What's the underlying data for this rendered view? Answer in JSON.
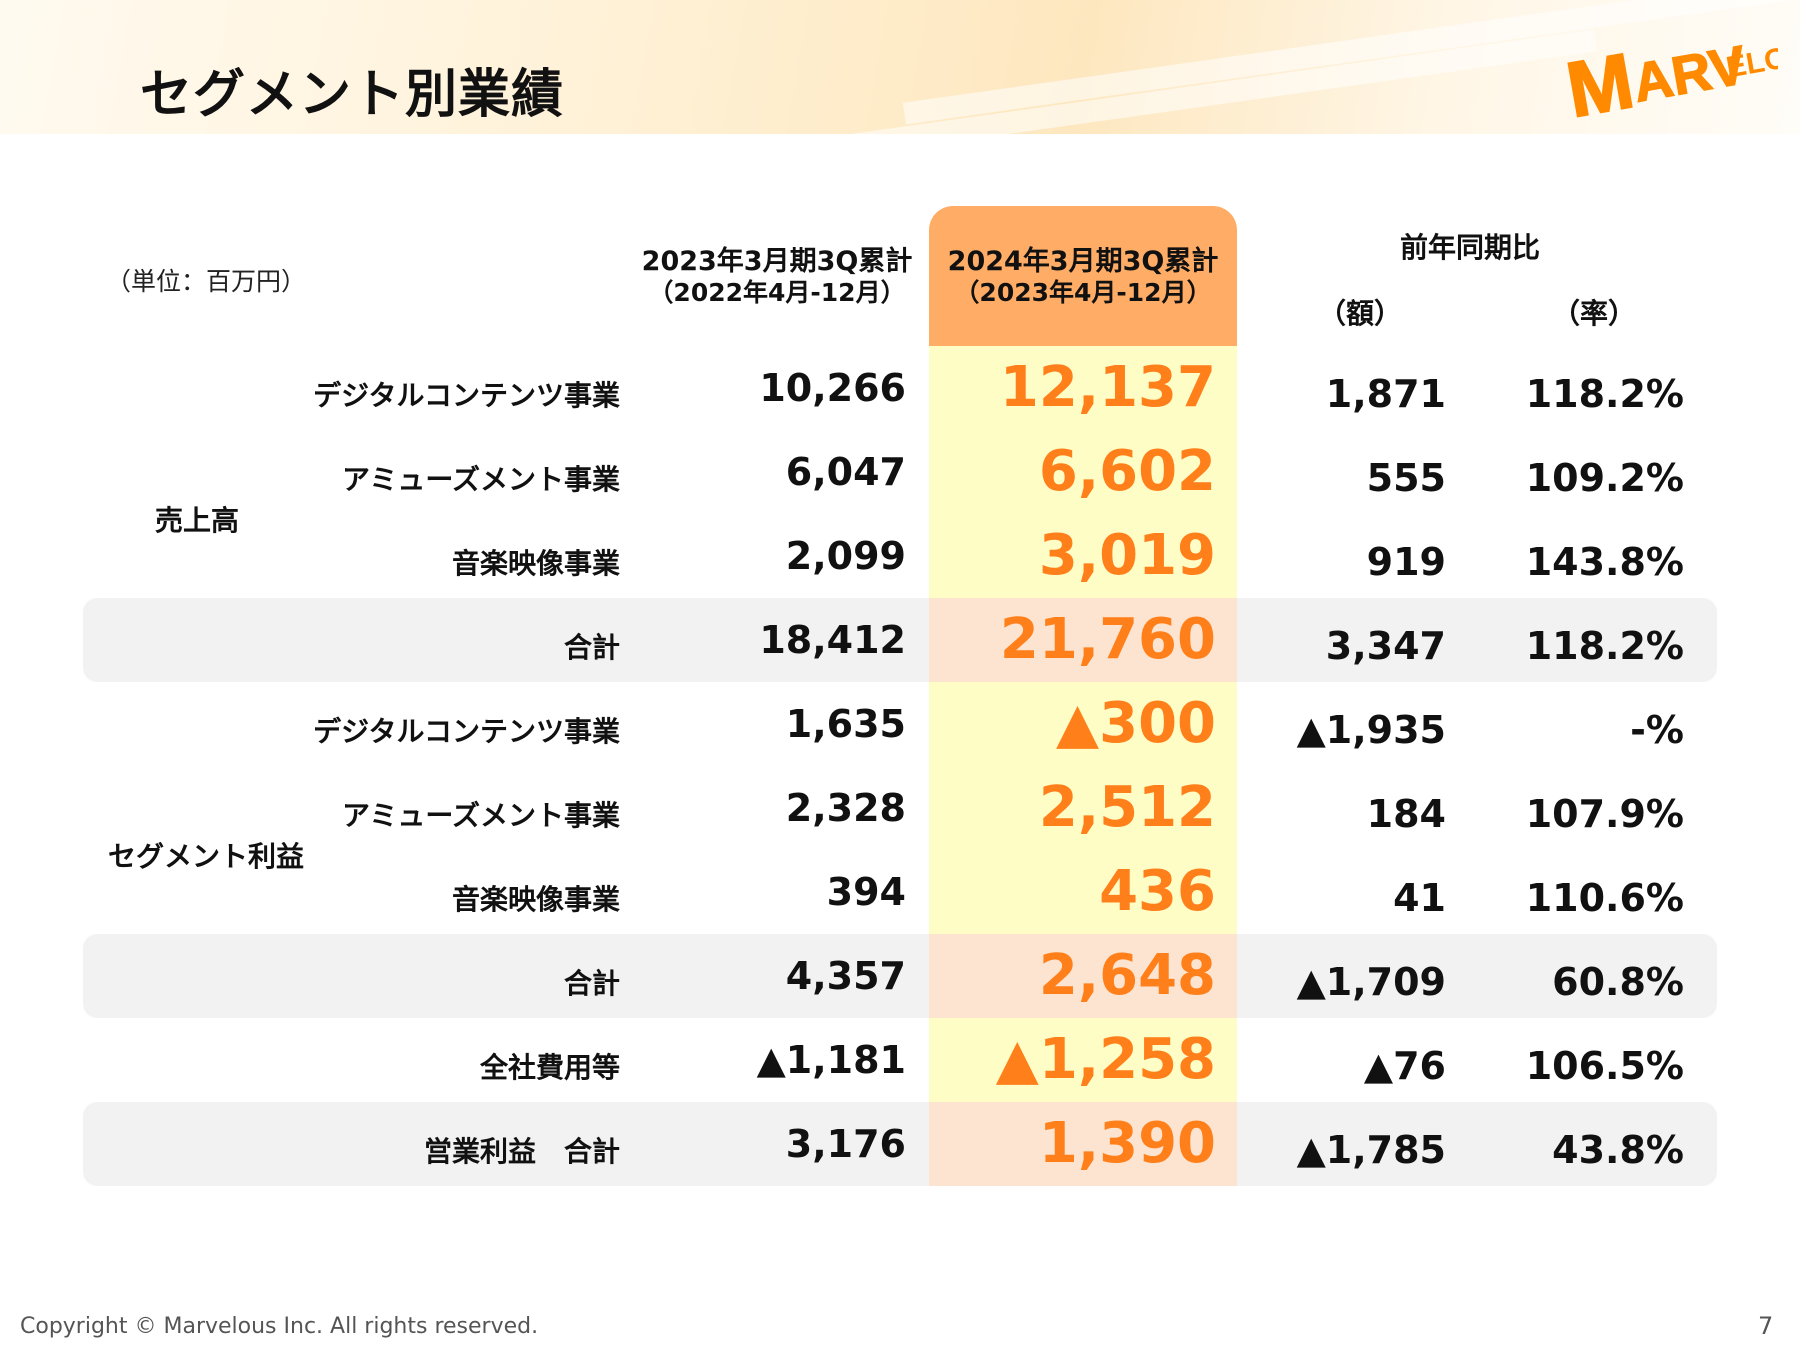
{
  "page": {
    "title": "セグメント別業績",
    "logo_text": "MARVELOUS!",
    "unit": "（単位：百万円）",
    "copyright": "Copyright © Marvelous Inc. All rights reserved.",
    "page_number": "7"
  },
  "colors": {
    "accent": "#ff7f1a",
    "highlight_header": "#ffad66",
    "highlight_body": "#fffdc6",
    "highlight_total": "#fde4d0",
    "total_row_bg": "#f2f2f2"
  },
  "columns": {
    "prev": {
      "line1": "2023年3月期3Q累計",
      "line2": "（2022年4月-12月）"
    },
    "cur": {
      "line1": "2024年3月期3Q累計",
      "line2": "（2023年4月-12月）"
    },
    "yoy": {
      "title": "前年同期比",
      "amount": "（額）",
      "rate": "（率）"
    }
  },
  "groups": {
    "sales": "売上高",
    "segment_profit": "セグメント利益"
  },
  "rows": [
    {
      "label": "デジタルコンテンツ事業",
      "prev": "10,266",
      "cur": "12,137",
      "diff": "1,871",
      "rate": "118.2%"
    },
    {
      "label": "アミューズメント事業",
      "prev": "6,047",
      "cur": "6,602",
      "diff": "555",
      "rate": "109.2%"
    },
    {
      "label": "音楽映像事業",
      "prev": "2,099",
      "cur": "3,019",
      "diff": "919",
      "rate": "143.8%"
    },
    {
      "label": "合計",
      "prev": "18,412",
      "cur": "21,760",
      "diff": "3,347",
      "rate": "118.2%"
    },
    {
      "label": "デジタルコンテンツ事業",
      "prev": "1,635",
      "cur": "▲300",
      "diff": "▲1,935",
      "rate": "-%"
    },
    {
      "label": "アミューズメント事業",
      "prev": "2,328",
      "cur": "2,512",
      "diff": "184",
      "rate": "107.9%"
    },
    {
      "label": "音楽映像事業",
      "prev": "394",
      "cur": "436",
      "diff": "41",
      "rate": "110.6%"
    },
    {
      "label": "合計",
      "prev": "4,357",
      "cur": "2,648",
      "diff": "▲1,709",
      "rate": "60.8%"
    },
    {
      "label": "全社費用等",
      "prev": "▲1,181",
      "cur": "▲1,258",
      "diff": "▲76",
      "rate": "106.5%"
    },
    {
      "label": "営業利益　合計",
      "prev": "3,176",
      "cur": "1,390",
      "diff": "▲1,785",
      "rate": "43.8%"
    }
  ]
}
